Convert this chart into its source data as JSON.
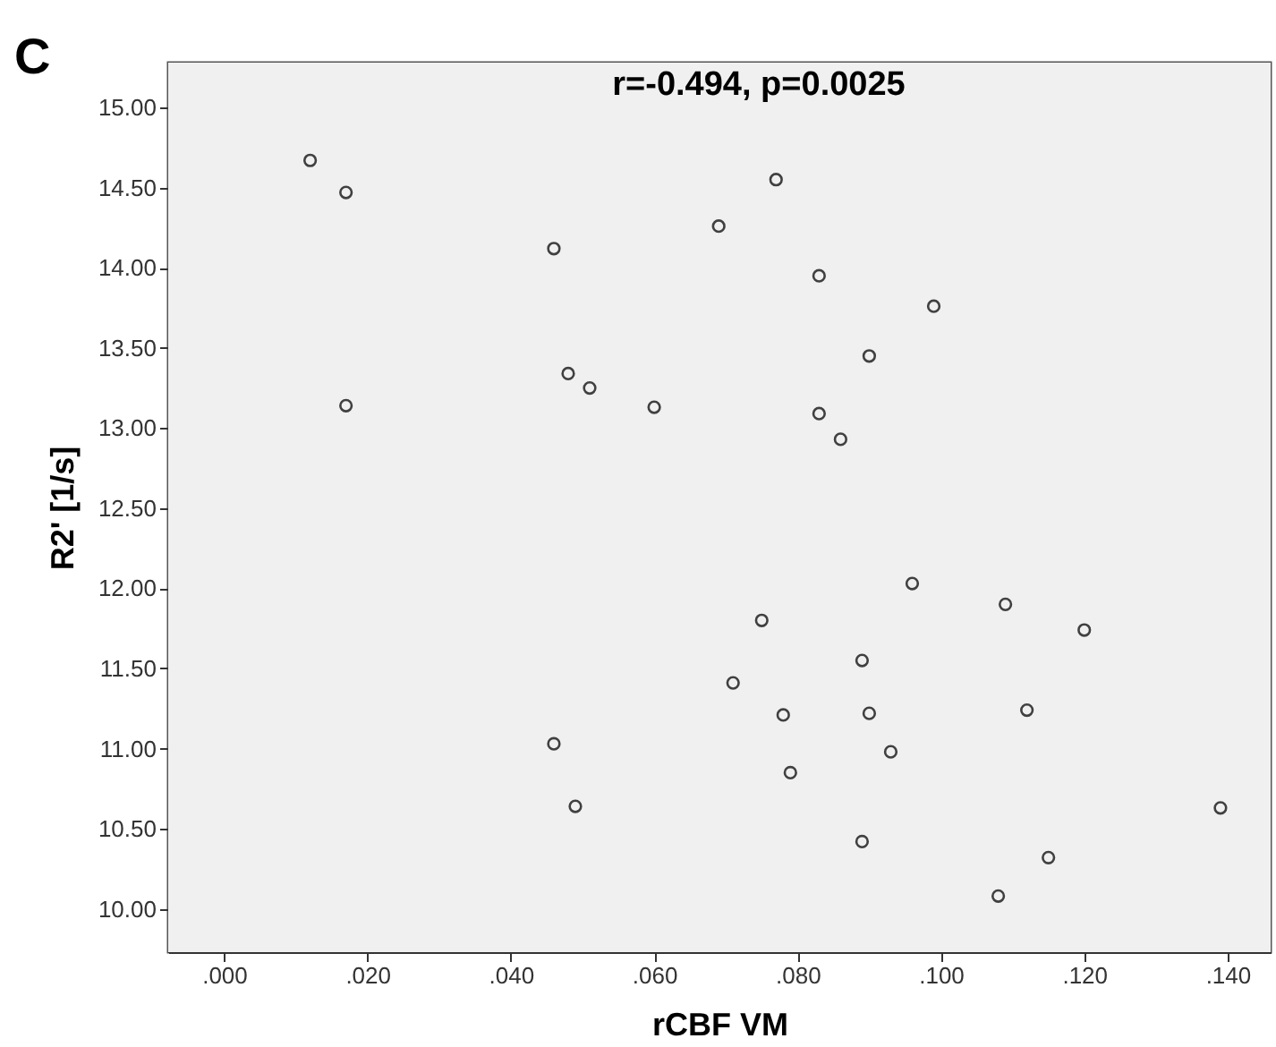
{
  "chart_data": {
    "type": "scatter",
    "xlabel": "rCBF VM",
    "ylabel": "R2' [1/s]",
    "annotations": [
      "C",
      "r=-0.494, p=0.0025"
    ],
    "x": [
      0.012,
      0.017,
      0.017,
      0.046,
      0.048,
      0.051,
      0.06,
      0.069,
      0.077,
      0.083,
      0.083,
      0.086,
      0.09,
      0.099,
      0.096,
      0.109,
      0.12,
      0.075,
      0.089,
      0.071,
      0.078,
      0.09,
      0.112,
      0.046,
      0.093,
      0.079,
      0.049,
      0.139,
      0.089,
      0.115,
      0.108
    ],
    "series": [
      {
        "color": "#404040",
        "values": [
          14.67,
          14.47,
          13.14,
          14.12,
          13.34,
          13.25,
          13.13,
          14.26,
          14.55,
          13.95,
          13.09,
          12.93,
          13.45,
          13.76,
          12.03,
          11.9,
          11.74,
          11.8,
          11.55,
          11.41,
          11.21,
          11.22,
          11.24,
          11.03,
          10.98,
          10.85,
          10.64,
          10.63,
          10.42,
          10.32,
          10.08
        ]
      }
    ],
    "xlim": [
      -0.0078,
      0.146
    ],
    "ylim": [
      9.73,
      15.28
    ],
    "xticks": [
      {
        "value": 0,
        "label": ".000"
      },
      {
        "value": 0.02,
        "label": ".020"
      },
      {
        "value": 0.04,
        "label": ".040"
      },
      {
        "value": 0.06,
        "label": ".060"
      },
      {
        "value": 0.08,
        "label": ".080"
      },
      {
        "value": 0.1,
        "label": ".100"
      },
      {
        "value": 0.12,
        "label": ".120"
      },
      {
        "value": 0.14,
        "label": ".140"
      }
    ],
    "yticks": [
      {
        "value": 10,
        "label": "10.00"
      },
      {
        "value": 10.5,
        "label": "10.50"
      },
      {
        "value": 11,
        "label": "11.00"
      },
      {
        "value": 11.5,
        "label": "11.50"
      },
      {
        "value": 12,
        "label": "12.00"
      },
      {
        "value": 12.5,
        "label": "12.50"
      },
      {
        "value": 13,
        "label": "13.00"
      },
      {
        "value": 13.5,
        "label": "13.50"
      },
      {
        "value": 14,
        "label": "14.00"
      },
      {
        "value": 14.5,
        "label": "14.50"
      },
      {
        "value": 15,
        "label": "15.00"
      }
    ],
    "grid": false,
    "marker": "circle"
  }
}
